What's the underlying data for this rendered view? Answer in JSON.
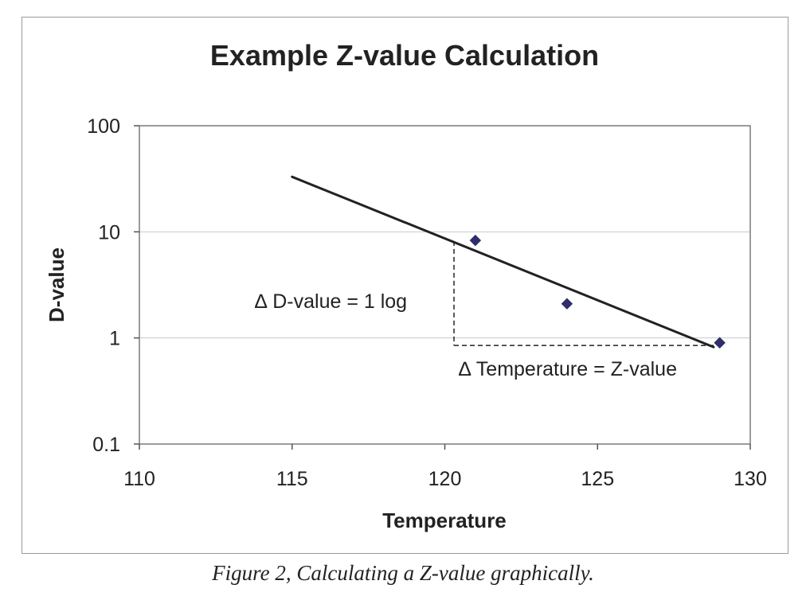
{
  "chart_data": {
    "type": "scatter",
    "title": "Example Z-value Calculation",
    "xlabel": "Temperature",
    "ylabel": "D-value",
    "xlim": [
      110,
      130
    ],
    "ylim": [
      0.1,
      100
    ],
    "yscale": "log",
    "x_ticks": [
      "110",
      "115",
      "120",
      "125",
      "130"
    ],
    "y_ticks": [
      "0.1",
      "1",
      "10",
      "100"
    ],
    "grid": "horizontal",
    "legend": "none",
    "series": [
      {
        "kind": "points",
        "marker": "diamond",
        "color": "#2e2e6a",
        "points": [
          {
            "x": 121,
            "y": 8.3
          },
          {
            "x": 124,
            "y": 2.1
          },
          {
            "x": 129,
            "y": 0.9
          }
        ]
      },
      {
        "kind": "trendline",
        "color": "#222222",
        "points": [
          {
            "x": 115,
            "y": 33
          },
          {
            "x": 128.8,
            "y": 0.82
          }
        ]
      }
    ],
    "annotations": [
      {
        "text": "∆ D-value = 1 log"
      },
      {
        "text": "∆ Temperature = Z-value"
      }
    ],
    "helper_lines": {
      "vertical": {
        "x": 120.3,
        "y_from": 0.85,
        "y_to": 8.2
      },
      "horizontal": {
        "y": 0.85,
        "x_from": 120.3,
        "x_to": 128.8
      }
    }
  },
  "caption": "Figure 2, Calculating a Z-value graphically."
}
